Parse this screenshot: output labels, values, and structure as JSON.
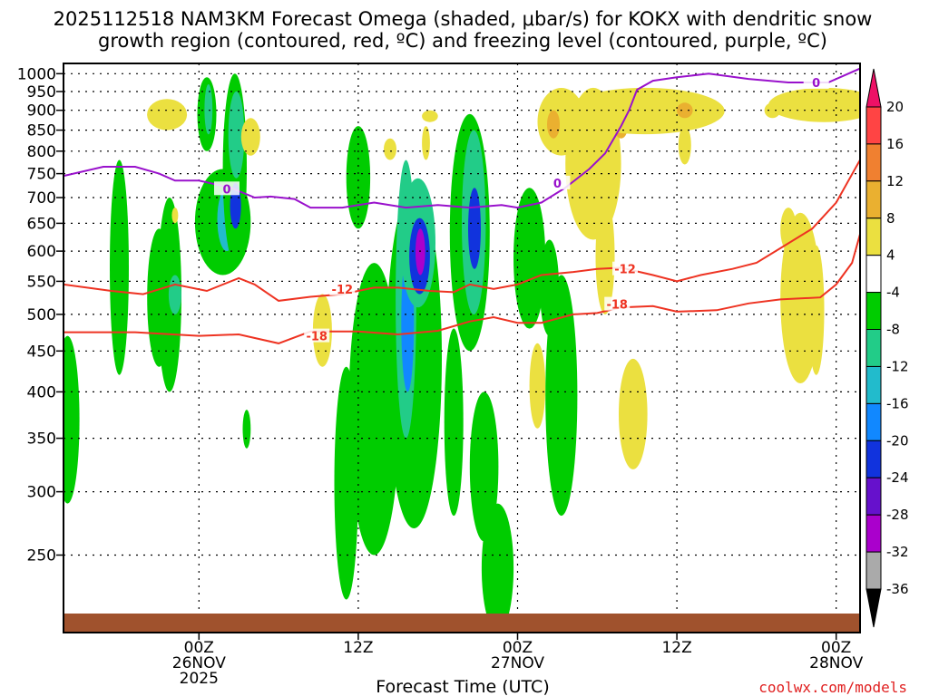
{
  "chart_data": {
    "type": "heatmap",
    "title_line1": "2025112518 NAM3KM Forecast Omega (shaded, μbar/s) for KOKX with dendritic snow",
    "title_line2": "growth region (contoured, red, ºC) and freezing level (contoured, purple, ºC)",
    "xlabel": "Forecast Time (UTC)",
    "ylabel": "",
    "yticks": [
      "250",
      "300",
      "350",
      "400",
      "450",
      "500",
      "550",
      "600",
      "650",
      "700",
      "750",
      "800",
      "850",
      "900",
      "950",
      "1000"
    ],
    "ylim_hpa": [
      1030,
      200
    ],
    "x_hours": [
      -11,
      89
    ],
    "xticks": [
      {
        "hour": 6,
        "line1": "00Z",
        "line2": "26NOV",
        "line3": "2025"
      },
      {
        "hour": 26,
        "line1": "12Z",
        "line2": "",
        "line3": ""
      },
      {
        "hour": 46,
        "line1": "00Z",
        "line2": "27NOV",
        "line3": ""
      },
      {
        "hour": 66,
        "line1": "12Z",
        "line2": "",
        "line3": ""
      },
      {
        "hour": 86,
        "line1": "00Z",
        "line2": "28NOV",
        "line3": ""
      }
    ],
    "grid": true,
    "watermark": "coolwx.com/models",
    "colorbar": {
      "levels": [
        "20",
        "16",
        "12",
        "8",
        "4",
        "-4",
        "-8",
        "-12",
        "-16",
        "-20",
        "-24",
        "-28",
        "-32",
        "-36"
      ],
      "colors": [
        "#ee1166",
        "#ff4444",
        "#f08030",
        "#eab030",
        "#ebe040",
        "#ffffff",
        "#00cc00",
        "#22cc88",
        "#22bbcc",
        "#1188ff",
        "#1133dd",
        "#6611cc",
        "#aa00cc",
        "#aaaaaa",
        "#000000"
      ]
    },
    "omega_blobs": [
      {
        "hour": -10.5,
        "p_top": 290,
        "p_bot": 470,
        "w": 1.5,
        "level": -6
      },
      {
        "hour": -4,
        "p_top": 420,
        "p_bot": 780,
        "w": 1.2,
        "level": -6
      },
      {
        "hour": 1,
        "p_top": 430,
        "p_bot": 640,
        "w": 1.5,
        "level": -6
      },
      {
        "hour": 2.5,
        "p_top": 430,
        "p_bot": 670,
        "w": 0.8,
        "level": -10
      },
      {
        "hour": 2.3,
        "p_top": 400,
        "p_bot": 700,
        "w": 1.5,
        "level": -6
      },
      {
        "hour": 3,
        "p_top": 650,
        "p_bot": 680,
        "w": 0.4,
        "level": 6
      },
      {
        "hour": 2,
        "p_top": 850,
        "p_bot": 930,
        "w": 2.5,
        "level": 6
      },
      {
        "hour": 7,
        "p_top": 800,
        "p_bot": 990,
        "w": 1.2,
        "level": -6
      },
      {
        "hour": 7.2,
        "p_top": 840,
        "p_bot": 970,
        "w": 0.5,
        "level": -12
      },
      {
        "hour": 9,
        "p_top": 560,
        "p_bot": 760,
        "w": 3.5,
        "level": -6
      },
      {
        "hour": 9.5,
        "p_top": 600,
        "p_bot": 720,
        "w": 1.2,
        "level": -16
      },
      {
        "hour": 10.5,
        "p_top": 580,
        "p_bot": 1000,
        "w": 1.5,
        "level": -6
      },
      {
        "hour": 10.6,
        "p_top": 640,
        "p_bot": 730,
        "w": 0.7,
        "level": -22
      },
      {
        "hour": 10.7,
        "p_top": 740,
        "p_bot": 950,
        "w": 1.0,
        "level": -12
      },
      {
        "hour": 12.5,
        "p_top": 790,
        "p_bot": 880,
        "w": 1.2,
        "level": 6
      },
      {
        "hour": 12,
        "p_top": 340,
        "p_bot": 380,
        "w": 0.5,
        "level": -6
      },
      {
        "hour": 21.5,
        "p_top": 430,
        "p_bot": 530,
        "w": 1.2,
        "level": 6
      },
      {
        "hour": 24.5,
        "p_top": 220,
        "p_bot": 430,
        "w": 1.5,
        "level": -6
      },
      {
        "hour": 28,
        "p_top": 250,
        "p_bot": 580,
        "w": 3.2,
        "level": -6
      },
      {
        "hour": 30,
        "p_top": 300,
        "p_bot": 440,
        "w": 1.8,
        "level": -6
      },
      {
        "hour": 33,
        "p_top": 270,
        "p_bot": 720,
        "w": 3.5,
        "level": -6
      },
      {
        "hour": 32,
        "p_top": 350,
        "p_bot": 780,
        "w": 1.3,
        "level": -12
      },
      {
        "hour": 32.2,
        "p_top": 400,
        "p_bot": 600,
        "w": 0.8,
        "level": -20
      },
      {
        "hour": 33.5,
        "p_top": 510,
        "p_bot": 740,
        "w": 2.2,
        "level": -12
      },
      {
        "hour": 33.7,
        "p_top": 530,
        "p_bot": 660,
        "w": 1.3,
        "level": -24
      },
      {
        "hour": 33.8,
        "p_top": 560,
        "p_bot": 640,
        "w": 0.6,
        "level": -32
      },
      {
        "hour": 26,
        "p_top": 640,
        "p_bot": 860,
        "w": 1.5,
        "level": -6
      },
      {
        "hour": 30,
        "p_top": 780,
        "p_bot": 830,
        "w": 0.8,
        "level": 6
      },
      {
        "hour": 35,
        "p_top": 870,
        "p_bot": 900,
        "w": 1.0,
        "level": 6
      },
      {
        "hour": 34.5,
        "p_top": 780,
        "p_bot": 860,
        "w": 0.5,
        "level": 6
      },
      {
        "hour": 38,
        "p_top": 280,
        "p_bot": 480,
        "w": 1.2,
        "level": -6
      },
      {
        "hour": 40,
        "p_top": 450,
        "p_bot": 890,
        "w": 2.5,
        "level": -6
      },
      {
        "hour": 40.5,
        "p_top": 500,
        "p_bot": 850,
        "w": 1.5,
        "level": -12
      },
      {
        "hour": 40.6,
        "p_top": 570,
        "p_bot": 720,
        "w": 0.8,
        "level": -24
      },
      {
        "hour": 41.8,
        "p_top": 260,
        "p_bot": 400,
        "w": 1.8,
        "level": -6
      },
      {
        "hour": 43.5,
        "p_top": 200,
        "p_bot": 290,
        "w": 2.0,
        "level": -6
      },
      {
        "hour": 48.5,
        "p_top": 360,
        "p_bot": 460,
        "w": 1.0,
        "level": 6
      },
      {
        "hour": 47.5,
        "p_top": 480,
        "p_bot": 720,
        "w": 2.0,
        "level": -6
      },
      {
        "hour": 50,
        "p_top": 470,
        "p_bot": 620,
        "w": 1.2,
        "level": -6
      },
      {
        "hour": 51.5,
        "p_top": 280,
        "p_bot": 560,
        "w": 2.0,
        "level": -6
      },
      {
        "hour": 51.5,
        "p_top": 790,
        "p_bot": 960,
        "w": 3.0,
        "level": 6
      },
      {
        "hour": 50.5,
        "p_top": 830,
        "p_bot": 900,
        "w": 0.8,
        "level": 10
      },
      {
        "hour": 55.5,
        "p_top": 620,
        "p_bot": 960,
        "w": 3.5,
        "level": 6
      },
      {
        "hour": 57,
        "p_top": 500,
        "p_bot": 700,
        "w": 1.2,
        "level": 6
      },
      {
        "hour": 59,
        "p_top": 830,
        "p_bot": 880,
        "w": 0.8,
        "level": 10
      },
      {
        "hour": 56,
        "p_top": 870,
        "p_bot": 910,
        "w": 0.8,
        "level": 10
      },
      {
        "hour": 60.5,
        "p_top": 320,
        "p_bot": 440,
        "w": 1.8,
        "level": 6
      },
      {
        "hour": 62,
        "p_top": 840,
        "p_bot": 960,
        "w": 10,
        "level": 6
      },
      {
        "hour": 67,
        "p_top": 880,
        "p_bot": 920,
        "w": 1.0,
        "level": 10
      },
      {
        "hour": 67,
        "p_top": 770,
        "p_bot": 860,
        "w": 0.8,
        "level": 6
      },
      {
        "hour": 81.5,
        "p_top": 410,
        "p_bot": 670,
        "w": 2.5,
        "level": 6
      },
      {
        "hour": 80,
        "p_top": 600,
        "p_bot": 680,
        "w": 1.0,
        "level": 6
      },
      {
        "hour": 83.5,
        "p_top": 420,
        "p_bot": 610,
        "w": 1.0,
        "level": 6
      },
      {
        "hour": 84.5,
        "p_top": 870,
        "p_bot": 960,
        "w": 7,
        "level": 6
      },
      {
        "hour": 78,
        "p_top": 880,
        "p_bot": 920,
        "w": 1.0,
        "level": 6
      },
      {
        "hour": 91,
        "p_top": 880,
        "p_bot": 960,
        "w": 1.5,
        "level": 6
      },
      {
        "hour": 3,
        "p_top": 500,
        "p_bot": 560,
        "w": 0.8,
        "level": -12
      }
    ],
    "contours": [
      {
        "label": "-18",
        "color": "#ee3322",
        "points": [
          [
            -11,
            475
          ],
          [
            -2,
            475
          ],
          [
            6,
            470
          ],
          [
            11,
            472
          ],
          [
            16,
            460
          ],
          [
            20,
            476
          ],
          [
            26,
            476
          ],
          [
            31,
            472
          ],
          [
            36,
            477
          ],
          [
            40,
            490
          ],
          [
            43,
            496
          ],
          [
            46,
            488
          ],
          [
            49,
            488
          ],
          [
            53,
            500
          ],
          [
            56,
            502
          ],
          [
            59,
            510
          ],
          [
            63,
            512
          ],
          [
            66,
            504
          ],
          [
            71,
            506
          ],
          [
            75,
            516
          ],
          [
            79,
            522
          ],
          [
            84,
            525
          ],
          [
            86,
            545
          ],
          [
            88,
            580
          ],
          [
            89,
            630
          ]
        ],
        "label_at": [
          [
            20.8,
            470
          ],
          [
            58.5,
            515
          ]
        ]
      },
      {
        "label": "-12",
        "color": "#ee3322",
        "points": [
          [
            -11,
            545
          ],
          [
            -5,
            535
          ],
          [
            -1,
            530
          ],
          [
            3,
            545
          ],
          [
            7,
            535
          ],
          [
            11,
            555
          ],
          [
            13,
            545
          ],
          [
            16,
            520
          ],
          [
            20,
            526
          ],
          [
            24,
            530
          ],
          [
            28,
            540
          ],
          [
            31,
            540
          ],
          [
            35,
            535
          ],
          [
            38,
            533
          ],
          [
            40,
            545
          ],
          [
            43,
            538
          ],
          [
            46,
            545
          ],
          [
            49,
            560
          ],
          [
            53,
            565
          ],
          [
            56,
            570
          ],
          [
            59,
            572
          ],
          [
            63,
            560
          ],
          [
            66,
            550
          ],
          [
            69,
            560
          ],
          [
            73,
            570
          ],
          [
            76,
            580
          ],
          [
            79,
            605
          ],
          [
            83,
            640
          ],
          [
            86,
            690
          ],
          [
            89,
            780
          ]
        ],
        "label_at": [
          [
            24,
            538
          ],
          [
            59.5,
            570
          ]
        ]
      },
      {
        "label": "0",
        "color": "#9911cc",
        "points": [
          [
            -11,
            745
          ],
          [
            -6,
            765
          ],
          [
            -2,
            765
          ],
          [
            1,
            750
          ],
          [
            3,
            735
          ],
          [
            6,
            735
          ],
          [
            10,
            720
          ],
          [
            13,
            700
          ],
          [
            15,
            702
          ],
          [
            18,
            697
          ],
          [
            20,
            680
          ],
          [
            24,
            680
          ],
          [
            28,
            690
          ],
          [
            32,
            680
          ],
          [
            36,
            685
          ],
          [
            40,
            680
          ],
          [
            44,
            685
          ],
          [
            46,
            680
          ],
          [
            49,
            690
          ],
          [
            52,
            720
          ],
          [
            55,
            760
          ],
          [
            57,
            795
          ],
          [
            59,
            860
          ],
          [
            60,
            900
          ],
          [
            61,
            955
          ],
          [
            63,
            980
          ],
          [
            66,
            990
          ],
          [
            70,
            1000
          ],
          [
            75,
            985
          ],
          [
            80,
            975
          ],
          [
            85,
            975
          ],
          [
            89,
            1015
          ]
        ],
        "label_at": [
          [
            9.5,
            718
          ],
          [
            51,
            730
          ],
          [
            83.5,
            975
          ]
        ]
      }
    ]
  }
}
